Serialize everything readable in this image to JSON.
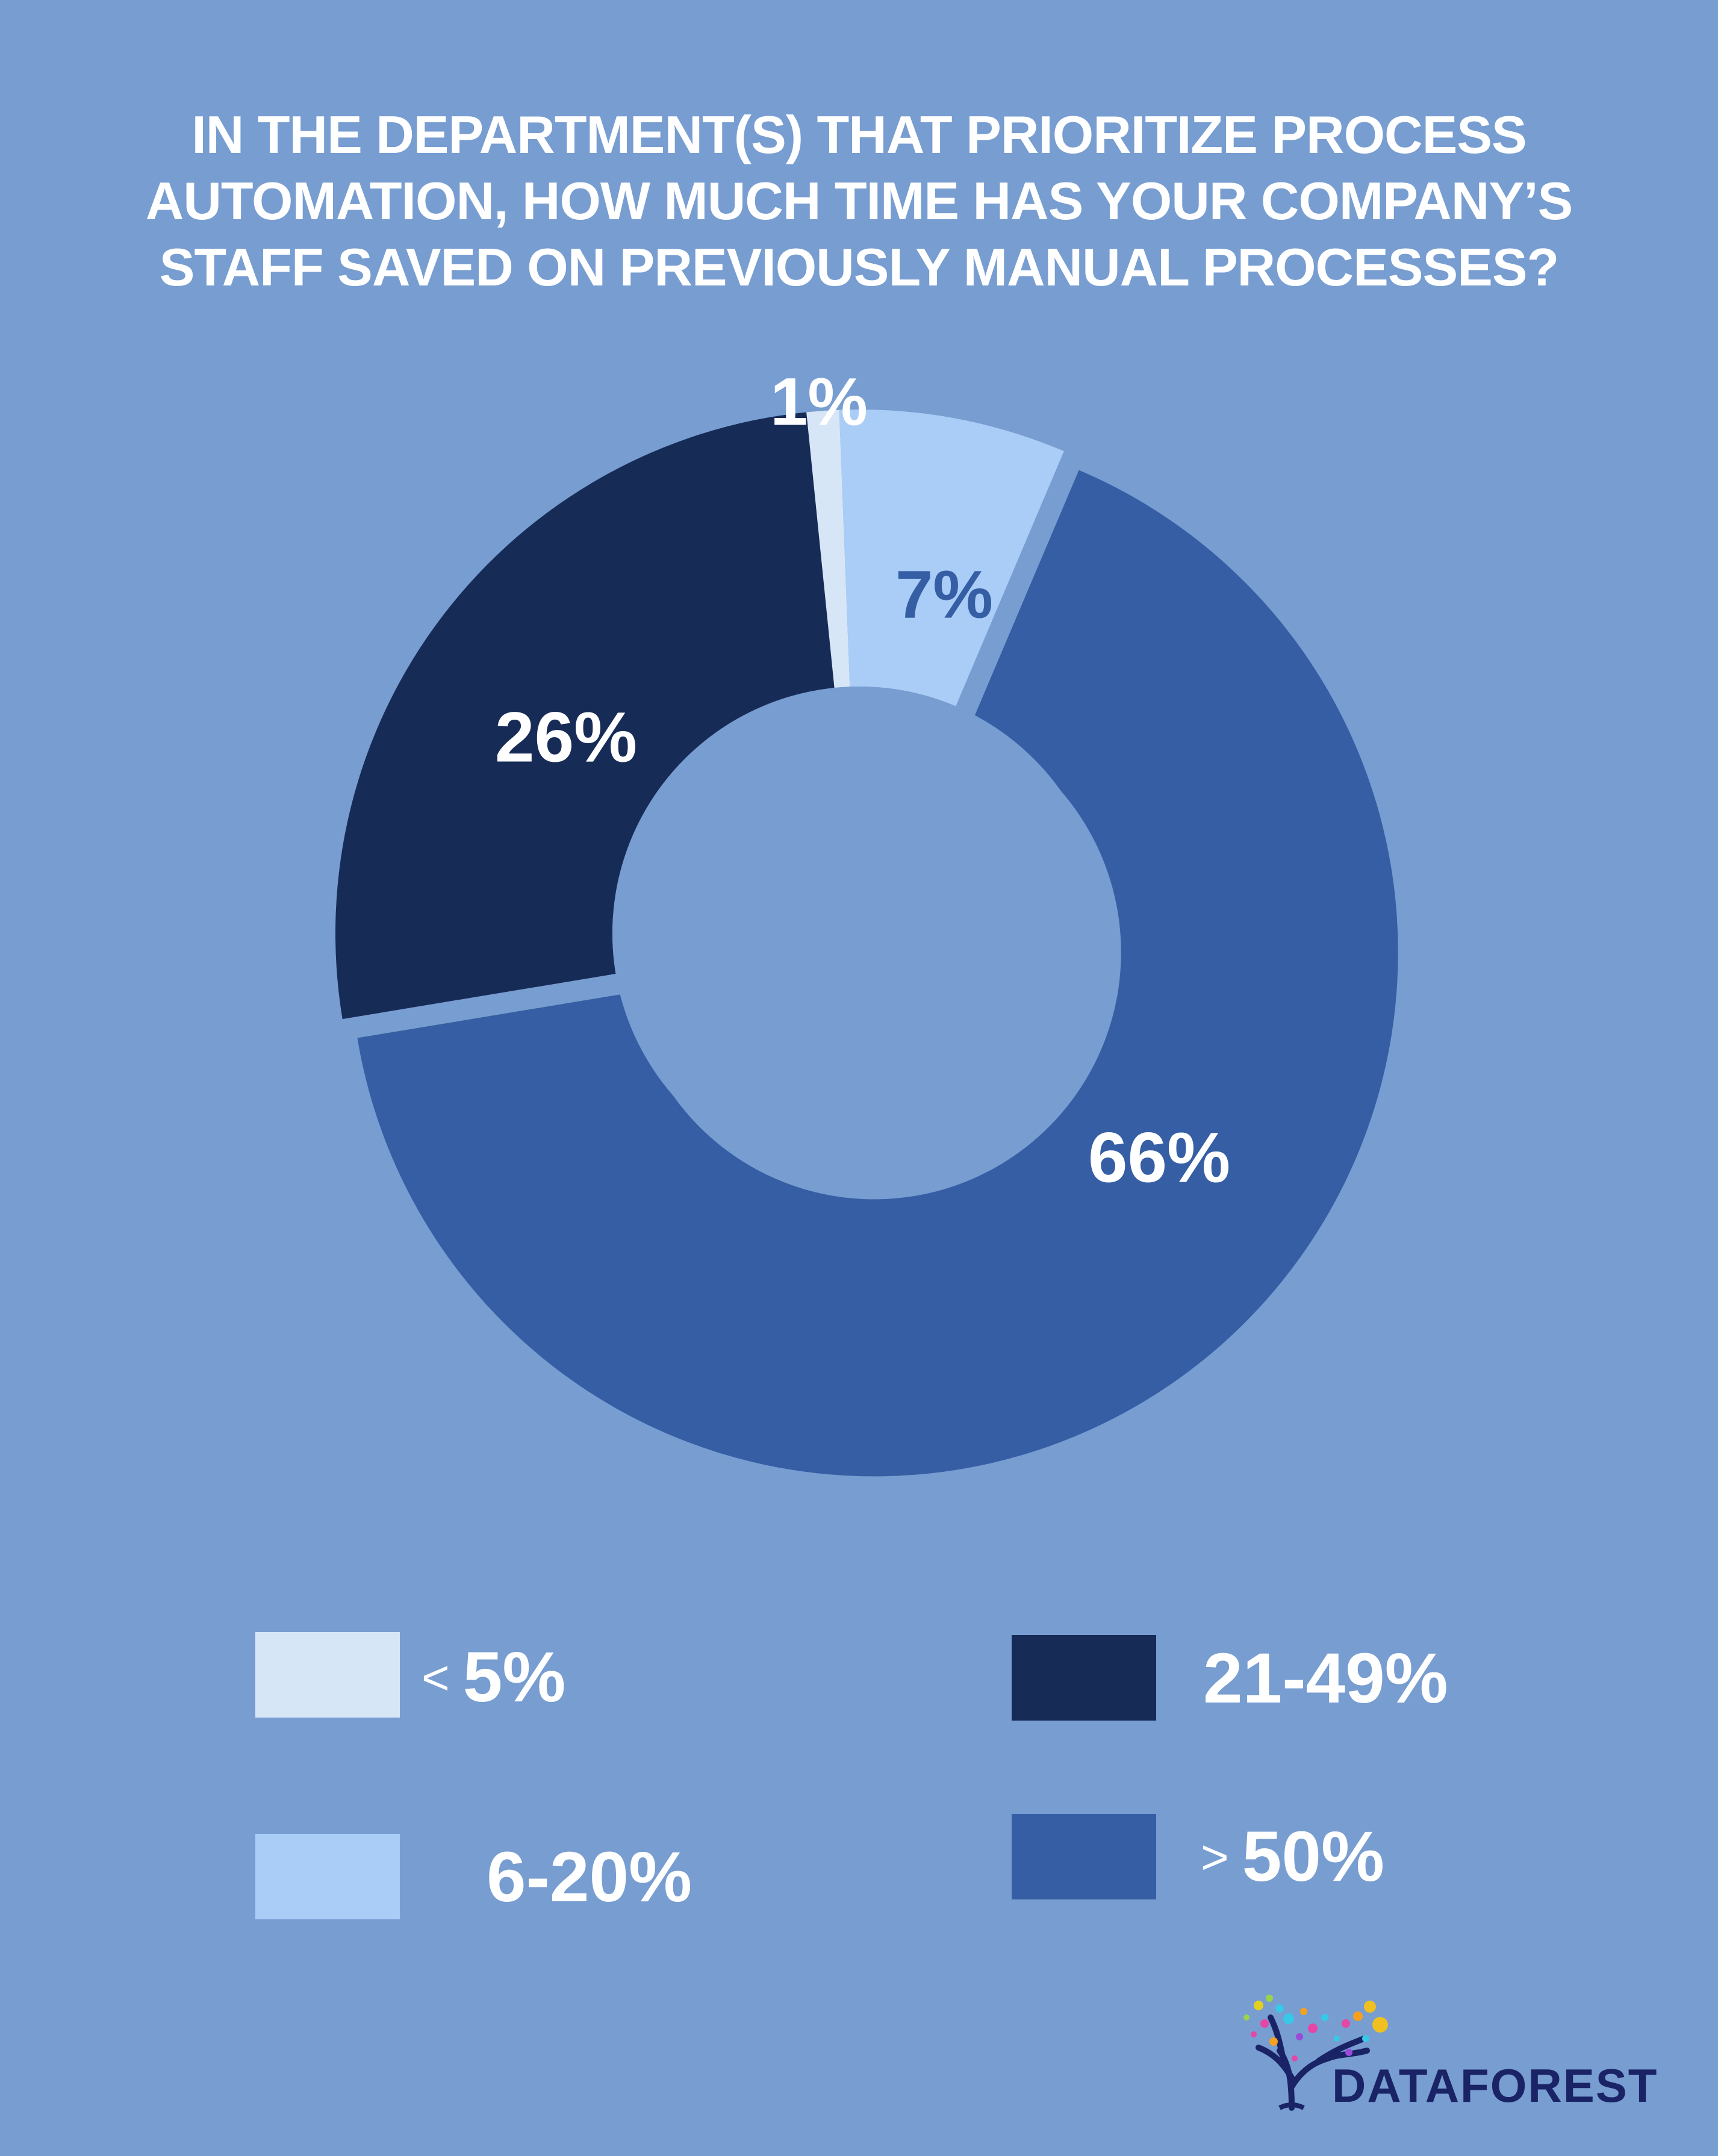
{
  "title_lines": [
    "IN THE DEPARTMENT(S) THAT PRIORITIZE PROCESS",
    "AUTOMATION, HOW MUCH TIME HAS YOUR COMPANY’S",
    "STAFF SAVED ON PREVIOUSLY MANUAL PROCESSES?"
  ],
  "colors": {
    "background": "#779dd1",
    "text": "#ffffff",
    "logo_text": "#1a2366"
  },
  "chart_data": {
    "type": "pie",
    "title": "IN THE DEPARTMENT(S) THAT PRIORITIZE PROCESS AUTOMATION, HOW MUCH TIME HAS YOUR COMPANY’S STAFF SAVED ON PREVIOUSLY MANUAL PROCESSES?",
    "donut": true,
    "exploded_slice": "> 50%",
    "slices": [
      {
        "category": "< 5%",
        "value": 1,
        "label": "1%",
        "color": "#d7e6f7",
        "label_color": "#ffffff"
      },
      {
        "category": "6-20%",
        "value": 7,
        "label": "7%",
        "color": "#a9cdf6",
        "label_color": "#355ea4"
      },
      {
        "category": "> 50%",
        "value": 66,
        "label": "66%",
        "color": "#355ea4",
        "label_color": "#ffffff"
      },
      {
        "category": "21-49%",
        "value": 26,
        "label": "26%",
        "color": "#172b57",
        "label_color": "#ffffff"
      }
    ],
    "legend_placement": "bottom"
  },
  "legend": [
    {
      "symbol": "<",
      "text": "5%",
      "color": "#d7e6f7"
    },
    {
      "symbol": "",
      "text": "6-20%",
      "color": "#a9cdf6"
    },
    {
      "symbol": "",
      "text": "21-49%",
      "color": "#172b57"
    },
    {
      "symbol": ">",
      "text": "50%",
      "color": "#355ea4"
    }
  ],
  "logo": {
    "text": "DATAFOREST",
    "icon": "tree-icon"
  }
}
